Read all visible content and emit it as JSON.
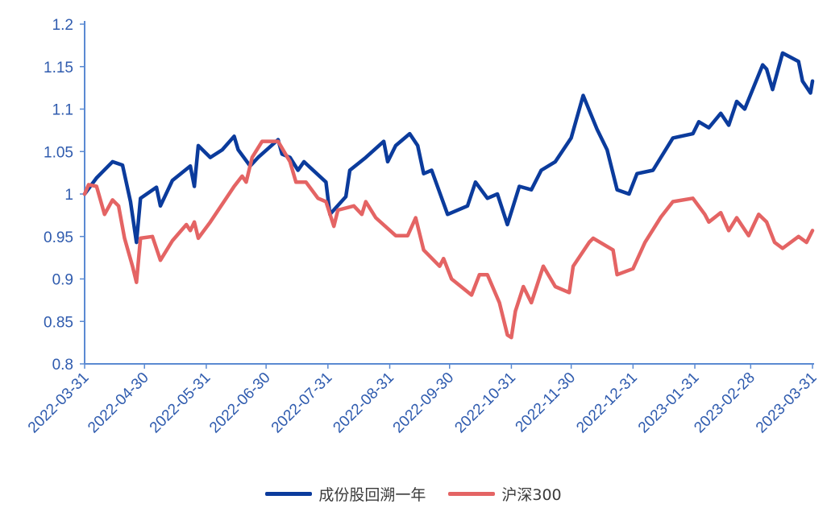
{
  "chart_data": {
    "type": "line",
    "title": "",
    "xlabel": "",
    "ylabel": "",
    "x_unit": "days since 2022-03-31",
    "ylim": [
      0.8,
      1.2
    ],
    "yticks": [
      "0.8",
      "0.85",
      "0.9",
      "0.95",
      "1",
      "1.05",
      "1.1",
      "1.15",
      "1.2"
    ],
    "ytick_values": [
      0.8,
      0.85,
      0.9,
      0.95,
      1,
      1.05,
      1.1,
      1.15,
      1.2
    ],
    "xticks": [
      "2022-03-31",
      "2022-04-30",
      "2022-05-31",
      "2022-06-30",
      "2022-07-31",
      "2022-08-31",
      "2022-09-30",
      "2022-10-31",
      "2022-11-30",
      "2022-12-31",
      "2023-01-31",
      "2023-02-28",
      "2023-03-31"
    ],
    "xtick_values": [
      0,
      30,
      61,
      91,
      122,
      153,
      183,
      214,
      244,
      275,
      306,
      334,
      365
    ],
    "grid": false,
    "legend_position": "bottom",
    "series": [
      {
        "name": "成份股回溯一年",
        "color": "#0B3B9C",
        "x": [
          0,
          6,
          14,
          19,
          23,
          26,
          28,
          36,
          38,
          44,
          53,
          55,
          57,
          63,
          69,
          75,
          77,
          83,
          87,
          97,
          99,
          103,
          107,
          110,
          121,
          123,
          131,
          133,
          141,
          150,
          152,
          156,
          163,
          167,
          170,
          174,
          182,
          192,
          196,
          202,
          207,
          212,
          218,
          224,
          229,
          236,
          244,
          250,
          257,
          262,
          267,
          273,
          277,
          285,
          295,
          305,
          308,
          313,
          319,
          323,
          327,
          331,
          340,
          342,
          345,
          350,
          358,
          360,
          364,
          365
        ],
        "y": [
          1.0,
          1.019,
          1.038,
          1.034,
          0.991,
          0.943,
          0.995,
          1.008,
          0.986,
          1.016,
          1.033,
          1.009,
          1.057,
          1.043,
          1.052,
          1.068,
          1.052,
          1.033,
          1.043,
          1.064,
          1.047,
          1.043,
          1.028,
          1.038,
          1.014,
          0.976,
          0.997,
          1.028,
          1.043,
          1.062,
          1.038,
          1.057,
          1.071,
          1.057,
          1.024,
          1.028,
          0.976,
          0.986,
          1.014,
          0.995,
          1.0,
          0.964,
          1.009,
          1.005,
          1.028,
          1.038,
          1.066,
          1.116,
          1.076,
          1.052,
          1.005,
          1.0,
          1.024,
          1.028,
          1.066,
          1.071,
          1.085,
          1.078,
          1.095,
          1.081,
          1.109,
          1.1,
          1.152,
          1.147,
          1.123,
          1.166,
          1.156,
          1.133,
          1.119,
          1.133
        ]
      },
      {
        "name": "沪深300",
        "color": "#E46464",
        "x": [
          0,
          2,
          6,
          10,
          14,
          17,
          20,
          24,
          26,
          28,
          34,
          38,
          44,
          51,
          53,
          55,
          57,
          63,
          75,
          79,
          81,
          84,
          89,
          97,
          103,
          106,
          111,
          117,
          121,
          125,
          127,
          135,
          139,
          141,
          146,
          156,
          162,
          166,
          170,
          178,
          180,
          184,
          194,
          198,
          202,
          208,
          212,
          214,
          216,
          220,
          224,
          230,
          236,
          243,
          245,
          253,
          255,
          265,
          267,
          275,
          281,
          289,
          295,
          305,
          311,
          313,
          319,
          323,
          327,
          333,
          338,
          342,
          346,
          350,
          358,
          362,
          365
        ],
        "y": [
          1.0,
          1.011,
          1.009,
          0.976,
          0.993,
          0.986,
          0.948,
          0.915,
          0.896,
          0.948,
          0.95,
          0.922,
          0.945,
          0.964,
          0.957,
          0.967,
          0.948,
          0.967,
          1.009,
          1.021,
          1.014,
          1.043,
          1.062,
          1.062,
          1.038,
          1.014,
          1.014,
          0.995,
          0.991,
          0.962,
          0.981,
          0.986,
          0.976,
          0.991,
          0.972,
          0.951,
          0.951,
          0.972,
          0.934,
          0.915,
          0.924,
          0.9,
          0.881,
          0.905,
          0.905,
          0.872,
          0.834,
          0.831,
          0.862,
          0.891,
          0.872,
          0.915,
          0.891,
          0.884,
          0.915,
          0.943,
          0.948,
          0.934,
          0.905,
          0.912,
          0.943,
          0.973,
          0.991,
          0.995,
          0.976,
          0.967,
          0.978,
          0.957,
          0.972,
          0.951,
          0.976,
          0.967,
          0.943,
          0.936,
          0.95,
          0.943,
          0.957
        ]
      }
    ]
  }
}
